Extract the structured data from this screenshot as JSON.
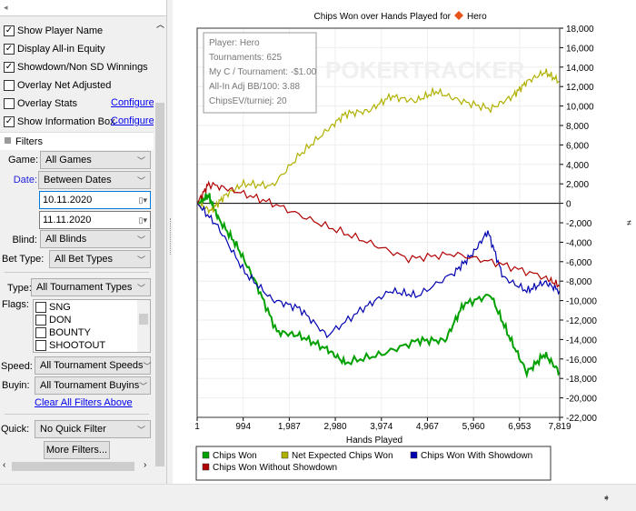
{
  "sidebar": {
    "options": [
      {
        "label": "Show Player Name",
        "checked": true
      },
      {
        "label": "Display All-in Equity",
        "checked": true
      },
      {
        "label": "Showdown/Non SD Winnings",
        "checked": true
      },
      {
        "label": "Overlay Net Adjusted",
        "checked": false
      },
      {
        "label": "Overlay Stats",
        "checked": false,
        "link": "Configure"
      },
      {
        "label": "Show Information Box",
        "checked": true,
        "link": "Configure"
      }
    ],
    "filters_header": "Filters",
    "game_label": "Game:",
    "game_value": "All Games",
    "date_label": "Date:",
    "date_value": "Between Dates",
    "date_from": "10.11.2020",
    "date_to": "11.11.2020",
    "blind_label": "Blind:",
    "blind_value": "All Blinds",
    "bettype_label": "Bet Type:",
    "bettype_value": "All Bet Types",
    "type_label": "Type:",
    "type_value": "All Tournament Types",
    "flags_label": "Flags:",
    "flags": [
      "SNG",
      "DON",
      "BOUNTY",
      "SHOOTOUT"
    ],
    "speed_label": "Speed:",
    "speed_value": "All Tournament Speeds",
    "buyin_label": "Buyin:",
    "buyin_value": "All Tournament Buyins",
    "clear_link": "Clear All Filters Above",
    "quick_label": "Quick:",
    "quick_value": "No Quick Filter",
    "more_filters": "More Filters..."
  },
  "chart_data": {
    "type": "line",
    "title": "Chips Won over Hands Played for",
    "player": "Hero",
    "xlabel": "Hands Played",
    "ylabel": "",
    "xlim": [
      1,
      7819
    ],
    "ylim": [
      -22000,
      18000
    ],
    "xticks": [
      "1",
      "994",
      "1,987",
      "2,980",
      "3,974",
      "4,967",
      "5,960",
      "6,953",
      "7,819"
    ],
    "yticks": [
      "18,000",
      "16,000",
      "14,000",
      "12,000",
      "10,000",
      "8,000",
      "6,000",
      "4,000",
      "2,000",
      "0",
      "-2,000",
      "-4,000",
      "-6,000",
      "-8,000",
      "-10,000",
      "-12,000",
      "-14,000",
      "-16,000",
      "-18,000",
      "-20,000",
      "-22,000"
    ],
    "watermark": "POKERTRACKER",
    "info_box": [
      "Player: Hero",
      "Tournaments: 625",
      "My C / Tournament: -$1.00",
      "All-In Adj BB/100: 3.88",
      "ChipsEV/turniej: 20"
    ],
    "series": [
      {
        "name": "Chips Won",
        "color": "#00a000",
        "x": [
          1,
          250,
          450,
          850,
          1250,
          1720,
          2210,
          2800,
          3190,
          3980,
          4760,
          5350,
          5740,
          6330,
          6720,
          7110,
          7500,
          7819
        ],
        "y": [
          0,
          800,
          -1500,
          -4300,
          -8000,
          -13200,
          -13600,
          -15000,
          -16400,
          -15500,
          -14100,
          -14100,
          -10400,
          -9400,
          -13600,
          -17400,
          -15500,
          -17400
        ]
      },
      {
        "name": "Net Expected Chips Won",
        "color": "#b0b000",
        "x": [
          1,
          300,
          600,
          1000,
          1626,
          2214,
          2800,
          3194,
          3700,
          4174,
          4700,
          5153,
          5700,
          6329,
          6800,
          7113,
          7505,
          7819
        ],
        "y": [
          0,
          -800,
          800,
          2000,
          1800,
          5000,
          7500,
          9200,
          9500,
          11000,
          10500,
          11500,
          10500,
          9700,
          11000,
          12500,
          13500,
          12500
        ],
        "jitter": true
      },
      {
        "name": "Chips Won With Showdown",
        "color": "#0000b0",
        "x": [
          1,
          450,
          1030,
          1620,
          2210,
          2800,
          3580,
          4170,
          4760,
          5550,
          5940,
          6270,
          6600,
          7110,
          7500,
          7819
        ],
        "y": [
          0,
          -2400,
          -7100,
          -9900,
          -10800,
          -13600,
          -10800,
          -9000,
          -9500,
          -7100,
          -5200,
          -2900,
          -7600,
          -9000,
          -8100,
          -9000
        ]
      },
      {
        "name": "Chips Won Without Showdown",
        "color": "#b00000",
        "x": [
          1,
          250,
          800,
          1626,
          2600,
          3580,
          4560,
          5540,
          6520,
          7500,
          7819
        ],
        "y": [
          0,
          2000,
          1300,
          0,
          -2000,
          -3800,
          -5700,
          -5200,
          -6200,
          -7600,
          -8500
        ]
      }
    ],
    "legend": "bottom",
    "grid": true
  }
}
